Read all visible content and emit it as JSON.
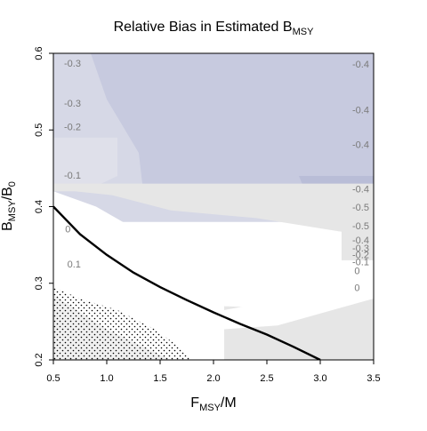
{
  "chart_data": {
    "type": "heatmap",
    "title": {
      "main": "Relative Bias in Estimated B",
      "sub": "MSY"
    },
    "xlabel": {
      "main": "F",
      "sub": "MSY",
      "tail": "/M"
    },
    "ylabel": {
      "main": "B",
      "sub": "MSY",
      "tail": "/B",
      "sub2": "0"
    },
    "xlim": [
      0.5,
      3.5
    ],
    "ylim": [
      0.2,
      0.6
    ],
    "xticks": [
      0.5,
      1.0,
      1.5,
      2.0,
      2.5,
      3.0,
      3.5
    ],
    "xtick_labels": [
      "0.5",
      "1.0",
      "1.5",
      "2.0",
      "2.5",
      "3.0",
      "3.5"
    ],
    "yticks": [
      0.2,
      0.3,
      0.4,
      0.5,
      0.6
    ],
    "ytick_labels": [
      "0.2",
      "0.3",
      "0.4",
      "0.5",
      "0.6"
    ],
    "colors": {
      "level_-0.5": "#b9bdd7",
      "level_-0.4": "#c7cadf",
      "level_-0.3": "#d6d8e6",
      "level_-0.2": "#dfe0ea",
      "level_-0.1": "#e6e6e6",
      "level_0": "#ffffff",
      "level_0.1": "#f0f0f0",
      "curve": "#000000"
    },
    "regions": [
      {
        "level": "-0.3",
        "x": [
          0.5,
          3.5,
          3.5,
          0.5
        ],
        "y": [
          0.6,
          0.6,
          0.38,
          0.38
        ]
      },
      {
        "level": "-0.4",
        "x": [
          0.85,
          3.5,
          3.5,
          1.35,
          1.3,
          1.0,
          0.85
        ],
        "y": [
          0.6,
          0.6,
          0.4,
          0.41,
          0.47,
          0.54,
          0.6
        ]
      },
      {
        "level": "-0.5",
        "x": [
          2.8,
          3.5,
          3.5,
          2.95,
          2.8
        ],
        "y": [
          0.44,
          0.44,
          0.36,
          0.39,
          0.44
        ]
      },
      {
        "level": "-0.3",
        "x": [
          0.5,
          0.62,
          0.6,
          0.5
        ],
        "y": [
          0.5,
          0.5,
          0.58,
          0.58
        ]
      },
      {
        "level": "-0.2",
        "x": [
          0.5,
          1.1,
          1.1,
          0.8,
          0.5
        ],
        "y": [
          0.49,
          0.49,
          0.44,
          0.42,
          0.42
        ]
      },
      {
        "level": "-0.1",
        "x": [
          0.5,
          3.5,
          3.5,
          3.3,
          2.4,
          1.6,
          1.05,
          0.7,
          0.5
        ],
        "y": [
          0.43,
          0.43,
          0.36,
          0.365,
          0.385,
          0.395,
          0.415,
          0.42,
          0.42
        ]
      },
      {
        "level": "0",
        "x": [
          0.5,
          0.9,
          1.4,
          2.0,
          2.4,
          2.8,
          3.5,
          3.5,
          2.7,
          2.0,
          1.6,
          1.0,
          0.5
        ],
        "y": [
          0.42,
          0.4,
          0.36,
          0.345,
          0.335,
          0.315,
          0.31,
          0.28,
          0.255,
          0.245,
          0.2,
          0.24,
          0.285
        ]
      },
      {
        "level": "0.1",
        "x": [
          0.5,
          1.0,
          1.6,
          1.95,
          2.0,
          0.5
        ],
        "y": [
          0.285,
          0.24,
          0.2,
          0.2,
          0.2,
          0.2
        ]
      },
      {
        "level": "-0.1",
        "x": [
          2.1,
          3.0,
          3.5,
          3.5,
          2.1
        ],
        "y": [
          0.27,
          0.265,
          0.28,
          0.2,
          0.2
        ]
      },
      {
        "level": "0",
        "x": [
          2.1,
          3.5,
          3.5,
          2.6,
          2.1
        ],
        "y": [
          0.265,
          0.3,
          0.28,
          0.245,
          0.24
        ]
      },
      {
        "level": "-0.1",
        "x": [
          3.2,
          3.5,
          3.5,
          3.2
        ],
        "y": [
          0.37,
          0.37,
          0.33,
          0.33
        ]
      }
    ],
    "stipple_region": {
      "x": [
        0.5,
        0.75,
        1.1,
        1.45,
        1.7,
        1.8,
        0.5
      ],
      "y": [
        0.295,
        0.28,
        0.265,
        0.24,
        0.215,
        0.2,
        0.2
      ]
    },
    "curve": {
      "x": [
        0.5,
        0.75,
        1.0,
        1.25,
        1.5,
        1.75,
        2.0,
        2.25,
        2.5,
        2.75,
        3.0
      ],
      "y": [
        0.4,
        0.364,
        0.337,
        0.314,
        0.295,
        0.278,
        0.262,
        0.247,
        0.233,
        0.217,
        0.2
      ]
    },
    "contour_labels": [
      {
        "text": "-0.3",
        "x": 0.6,
        "y": 0.586
      },
      {
        "text": "-0.3",
        "x": 0.6,
        "y": 0.534
      },
      {
        "text": "-0.2",
        "x": 0.6,
        "y": 0.503
      },
      {
        "text": "-0.1",
        "x": 0.6,
        "y": 0.44
      },
      {
        "text": "0",
        "x": 0.61,
        "y": 0.37
      },
      {
        "text": "0.1",
        "x": 0.63,
        "y": 0.324
      },
      {
        "text": "-0.4",
        "x": 3.3,
        "y": 0.585
      },
      {
        "text": "-0.4",
        "x": 3.3,
        "y": 0.525
      },
      {
        "text": "-0.4",
        "x": 3.3,
        "y": 0.48
      },
      {
        "text": "-0.4",
        "x": 3.3,
        "y": 0.422
      },
      {
        "text": "-0.5",
        "x": 3.3,
        "y": 0.398
      },
      {
        "text": "-0.5",
        "x": 3.3,
        "y": 0.374
      },
      {
        "text": "-0.4",
        "x": 3.3,
        "y": 0.355
      },
      {
        "text": "-0.3",
        "x": 3.3,
        "y": 0.345
      },
      {
        "text": "-0.2",
        "x": 3.3,
        "y": 0.336
      },
      {
        "text": "-0.1",
        "x": 3.3,
        "y": 0.327
      },
      {
        "text": "0",
        "x": 3.32,
        "y": 0.315
      },
      {
        "text": "0",
        "x": 3.32,
        "y": 0.293
      }
    ]
  }
}
